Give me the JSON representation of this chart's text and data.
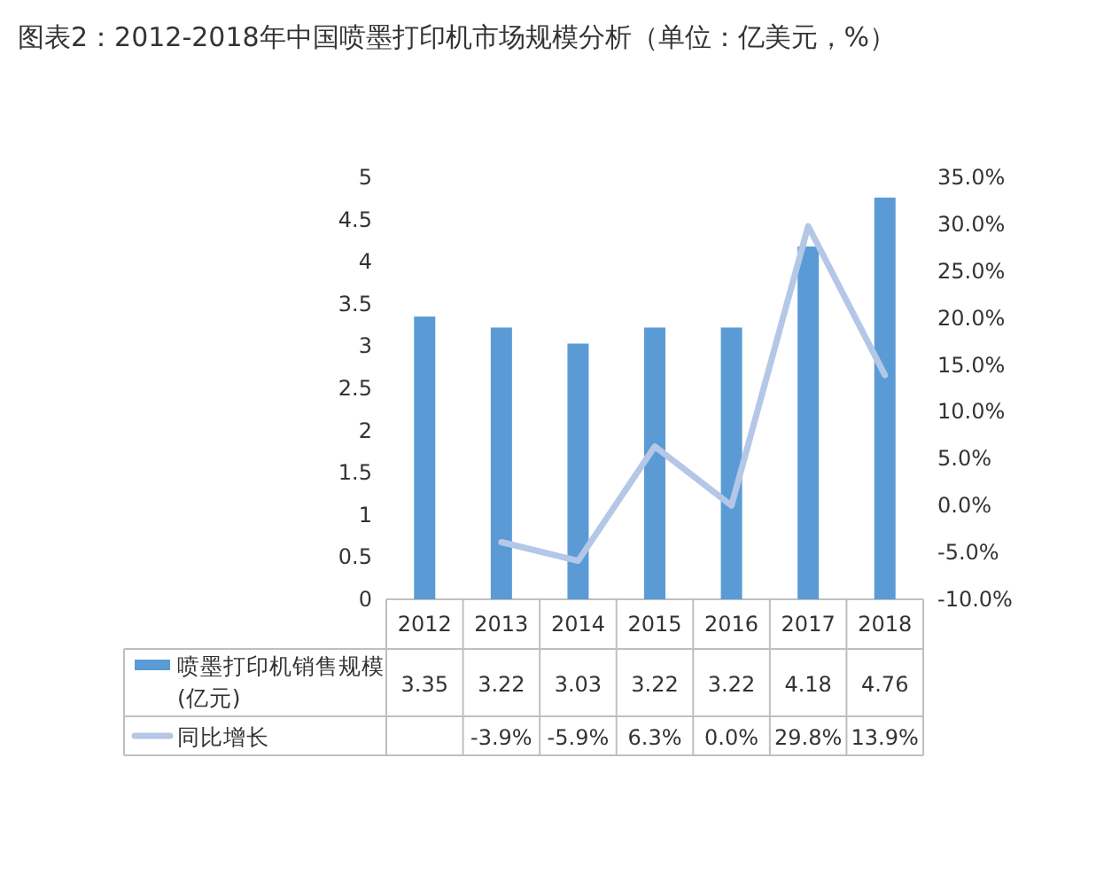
{
  "chart_data": {
    "type": "bar",
    "title": "图表2：2012-2018年中国喷墨打印机市场规模分析（单位：亿美元，%）",
    "categories": [
      "2012",
      "2013",
      "2014",
      "2015",
      "2016",
      "2017",
      "2018"
    ],
    "series": [
      {
        "name": "喷墨打印机销售规模(亿元)",
        "color": "#5b9bd5",
        "values": [
          3.35,
          3.22,
          3.03,
          3.22,
          3.22,
          4.18,
          4.76
        ],
        "value_labels": [
          "3.35",
          "3.22",
          "3.03",
          "3.22",
          "3.22",
          "4.18",
          "4.76"
        ]
      },
      {
        "name": "同比增长",
        "type": "line",
        "axis": "y2",
        "color": "#b4c7e7",
        "values": [
          null,
          -3.9,
          -5.9,
          6.3,
          0.0,
          29.8,
          13.9
        ],
        "value_labels": [
          null,
          "-3.9%",
          "-5.9%",
          "6.3%",
          "0.0%",
          "29.8%",
          "13.9%"
        ]
      }
    ],
    "ylim": [
      0,
      5
    ],
    "yticks": [
      0,
      0.5,
      1,
      1.5,
      2,
      2.5,
      3,
      3.5,
      4,
      4.5,
      5
    ],
    "y2lim": [
      -10,
      35
    ],
    "y2ticks": [
      {
        "value": -10,
        "label": "-10.0%"
      },
      {
        "value": -5,
        "label": "-5.0%"
      },
      {
        "value": 0,
        "label": "0.0%"
      },
      {
        "value": 5,
        "label": "5.0%"
      },
      {
        "value": 10,
        "label": "10.0%"
      },
      {
        "value": 15,
        "label": "15.0%"
      },
      {
        "value": 20,
        "label": "20.0%"
      },
      {
        "value": 25,
        "label": "25.0%"
      },
      {
        "value": 30,
        "label": "30.0%"
      },
      {
        "value": 35,
        "label": "35.0%"
      }
    ],
    "legend": "bottom",
    "grid": false
  }
}
